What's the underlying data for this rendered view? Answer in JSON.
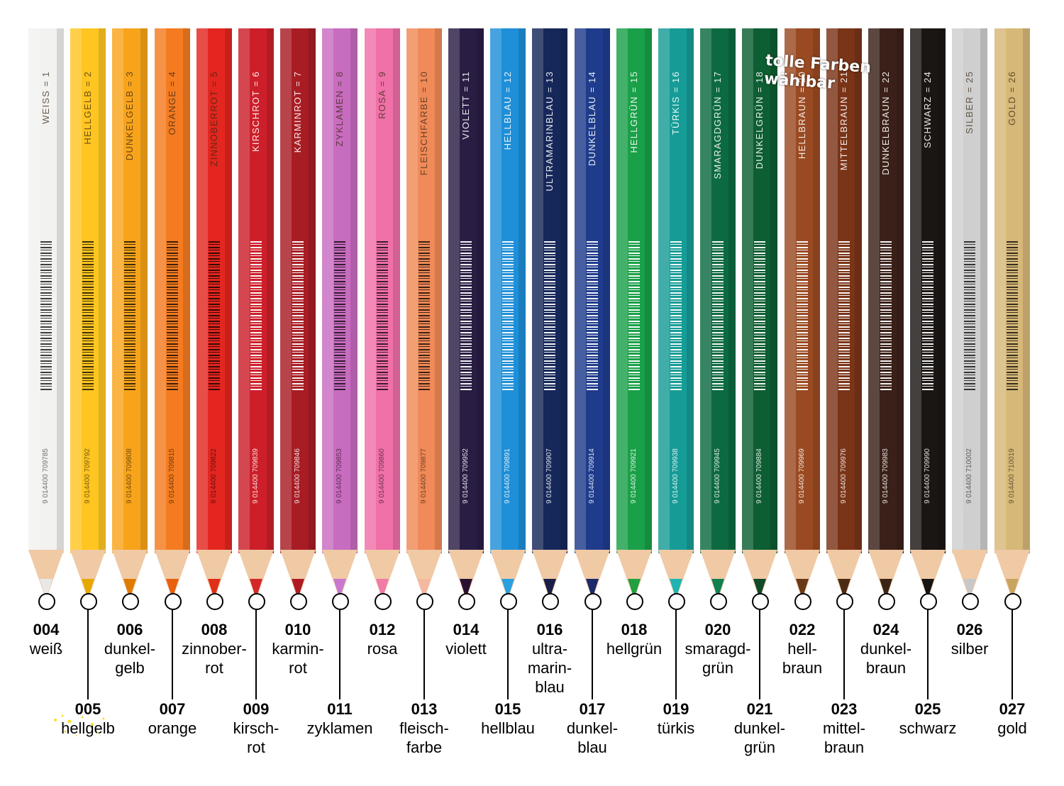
{
  "pencils": [
    {
      "print": "WEISS = 1",
      "ean": "9 014400 709785",
      "color": "#f2f2f0",
      "lead": "#e8e8e8",
      "code": "004",
      "name": "weiß",
      "dark_text": true,
      "row": "top"
    },
    {
      "print": "HELLGELB = 2",
      "ean": "9 014400 709792",
      "color": "#ffc521",
      "lead": "#e6a800",
      "code": "005",
      "name": "hellgelb",
      "dark_text": true,
      "row": "bottom"
    },
    {
      "print": "DUNKELGELB = 3",
      "ean": "9 014400 709808",
      "color": "#f8a41b",
      "lead": "#e07b00",
      "code": "006",
      "name": "dunkel-\ngelb",
      "dark_text": true,
      "row": "top"
    },
    {
      "print": "ORANGE = 4",
      "ean": "9 014400 709815",
      "color": "#f47b20",
      "lead": "#e85f10",
      "code": "007",
      "name": "orange",
      "dark_text": true,
      "row": "bottom"
    },
    {
      "print": "ZINNOBERROT = 5",
      "ean": "9 014400 709822",
      "color": "#e3261f",
      "lead": "#e03018",
      "code": "008",
      "name": "zinnober-\nrot",
      "dark_text": true,
      "row": "top"
    },
    {
      "print": "KIRSCHROT = 6",
      "ean": "9 014400 709839",
      "color": "#cc1f2a",
      "lead": "#d42828",
      "code": "009",
      "name": "kirsch-\nrot",
      "dark_text": false,
      "row": "bottom"
    },
    {
      "print": "KARMINROT = 7",
      "ean": "9 014400 709846",
      "color": "#a81c24",
      "lead": "#b01a22",
      "code": "010",
      "name": "karmin-\nrot",
      "dark_text": false,
      "row": "top"
    },
    {
      "print": "ZYKLAMEN = 8",
      "ean": "9 014400 709853",
      "color": "#c86cc0",
      "lead": "#c878d0",
      "code": "011",
      "name": "zyklamen",
      "dark_text": true,
      "row": "bottom"
    },
    {
      "print": "ROSA = 9",
      "ean": "9 014400 709860",
      "color": "#f070a8",
      "lead": "#f07aa8",
      "code": "012",
      "name": "rosa",
      "dark_text": true,
      "row": "top"
    },
    {
      "print": "FLEISCHFARBE = 10",
      "ean": "9 014400 709877",
      "color": "#f08a58",
      "lead": "#f4b8a0",
      "code": "013",
      "name": "fleisch-\nfarbe",
      "dark_text": true,
      "row": "bottom"
    },
    {
      "print": "VIOLETT = 11",
      "ean": "9 014400 709952",
      "color": "#2a1d44",
      "lead": "#2a1030",
      "code": "014",
      "name": "violett",
      "dark_text": false,
      "row": "top"
    },
    {
      "print": "HELLBLAU = 12",
      "ean": "9 014400 709891",
      "color": "#1e8fd8",
      "lead": "#2aa0e0",
      "code": "015",
      "name": "hellblau",
      "dark_text": false,
      "row": "bottom"
    },
    {
      "print": "ULTRAMARINBLAU = 13",
      "ean": "9 014400 709907",
      "color": "#16285a",
      "lead": "#1a1e48",
      "code": "016",
      "name": "ultra-\nmarin-\nblau",
      "dark_text": false,
      "row": "top"
    },
    {
      "print": "DUNKELBLAU = 14",
      "ean": "9 014400 709914",
      "color": "#1f3c8c",
      "lead": "#1a2a6a",
      "code": "017",
      "name": "dunkel-\nblau",
      "dark_text": false,
      "row": "bottom"
    },
    {
      "print": "HELLGRÜN = 15",
      "ean": "9 014400 709921",
      "color": "#1aa048",
      "lead": "#20a040",
      "code": "018",
      "name": "hellgrün",
      "dark_text": false,
      "row": "top"
    },
    {
      "print": "TÜRKIS = 16",
      "ean": "9 014400 709938",
      "color": "#169c96",
      "lead": "#20b4b0",
      "code": "019",
      "name": "türkis",
      "dark_text": false,
      "row": "bottom"
    },
    {
      "print": "SMARAGDGRÜN = 17",
      "ean": "9 014400 709945",
      "color": "#0c6a40",
      "lead": "#108050",
      "code": "020",
      "name": "smaragd-\ngrün",
      "dark_text": false,
      "row": "top"
    },
    {
      "print": "DUNKELGRÜN = 18",
      "ean": "9 014400 709884",
      "color": "#0d5e32",
      "lead": "#104a28",
      "code": "021",
      "name": "dunkel-\ngrün",
      "dark_text": false,
      "row": "bottom"
    },
    {
      "print": "HELLBRAUN = 20",
      "ean": "9 014400 709969",
      "color": "#9a4a22",
      "lead": "#6a3a18",
      "code": "022",
      "name": "hell-\nbraun",
      "dark_text": false,
      "row": "top"
    },
    {
      "print": "MITTELBRAUN = 21",
      "ean": "9 014400 709976",
      "color": "#7a3418",
      "lead": "#4a2a12",
      "code": "023",
      "name": "mittel-\nbraun",
      "dark_text": false,
      "row": "bottom"
    },
    {
      "print": "DUNKELBRAUN = 22",
      "ean": "9 014400 709983",
      "color": "#3a2018",
      "lead": "#3a2416",
      "code": "024",
      "name": "dunkel-\nbraun",
      "dark_text": false,
      "row": "top"
    },
    {
      "print": "SCHWARZ = 24",
      "ean": "9 014400 709990",
      "color": "#1a1614",
      "lead": "#141414",
      "code": "025",
      "name": "schwarz",
      "dark_text": false,
      "row": "bottom"
    },
    {
      "print": "SILBER = 25",
      "ean": "9 014400 710002",
      "color": "#cfcfcf",
      "lead": "#c8c8c8",
      "code": "026",
      "name": "silber",
      "dark_text": true,
      "row": "top"
    },
    {
      "print": "GOLD = 26",
      "ean": "9 014400 710019",
      "color": "#d6b878",
      "lead": "#c8a460",
      "code": "027",
      "name": "gold",
      "dark_text": true,
      "row": "bottom"
    }
  ],
  "overlay_text": "tolle Farben\nwählbar"
}
